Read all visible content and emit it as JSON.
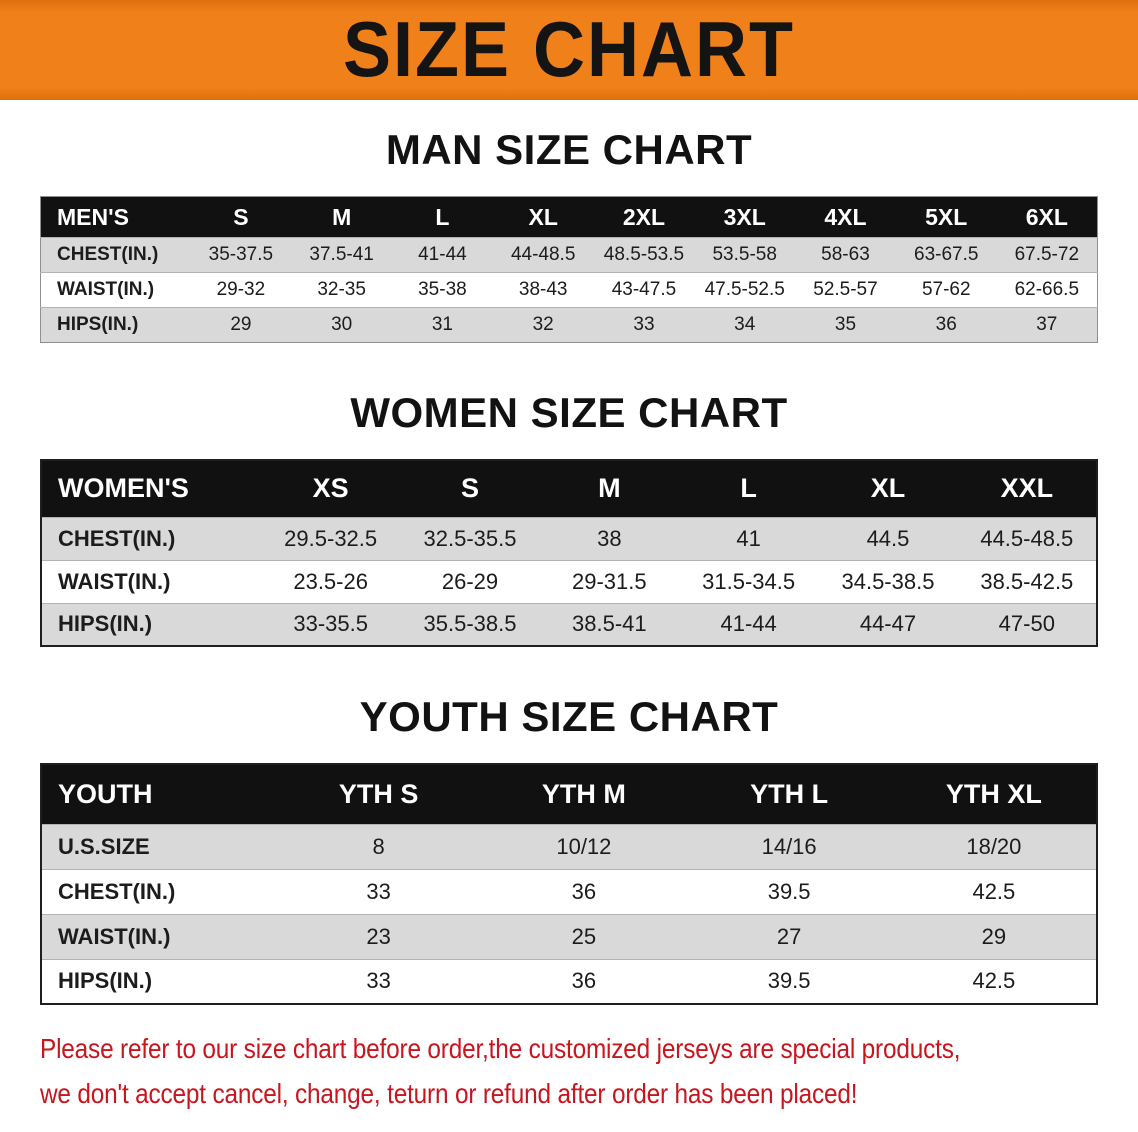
{
  "banner": {
    "title": "SIZE CHART"
  },
  "chart_data": [
    {
      "type": "table",
      "id": "mens",
      "title": "MAN SIZE CHART",
      "header": [
        "MEN'S",
        "S",
        "M",
        "L",
        "XL",
        "2XL",
        "3XL",
        "4XL",
        "5XL",
        "6XL"
      ],
      "rows": [
        [
          "CHEST(IN.)",
          "35-37.5",
          "37.5-41",
          "41-44",
          "44-48.5",
          "48.5-53.5",
          "53.5-58",
          "58-63",
          "63-67.5",
          "67.5-72"
        ],
        [
          "WAIST(IN.)",
          "29-32",
          "32-35",
          "35-38",
          "38-43",
          "43-47.5",
          "47.5-52.5",
          "52.5-57",
          "57-62",
          "62-66.5"
        ],
        [
          "HIPS(IN.)",
          "29",
          "30",
          "31",
          "32",
          "33",
          "34",
          "35",
          "36",
          "37"
        ]
      ]
    },
    {
      "type": "table",
      "id": "womens",
      "title": "WOMEN SIZE CHART",
      "header": [
        "WOMEN'S",
        "XS",
        "S",
        "M",
        "L",
        "XL",
        "XXL"
      ],
      "rows": [
        [
          "CHEST(IN.)",
          "29.5-32.5",
          "32.5-35.5",
          "38",
          "41",
          "44.5",
          "44.5-48.5"
        ],
        [
          "WAIST(IN.)",
          "23.5-26",
          "26-29",
          "29-31.5",
          "31.5-34.5",
          "34.5-38.5",
          "38.5-42.5"
        ],
        [
          "HIPS(IN.)",
          "33-35.5",
          "35.5-38.5",
          "38.5-41",
          "41-44",
          "44-47",
          "47-50"
        ]
      ]
    },
    {
      "type": "table",
      "id": "youth",
      "title": "YOUTH SIZE CHART",
      "header": [
        "YOUTH",
        "YTH S",
        "YTH M",
        "YTH L",
        "YTH XL"
      ],
      "rows": [
        [
          "U.S.SIZE",
          "8",
          "10/12",
          "14/16",
          "18/20"
        ],
        [
          "CHEST(IN.)",
          "33",
          "36",
          "39.5",
          "42.5"
        ],
        [
          "WAIST(IN.)",
          "23",
          "25",
          "27",
          "29"
        ],
        [
          "HIPS(IN.)",
          "33",
          "36",
          "39.5",
          "42.5"
        ]
      ]
    }
  ],
  "disclaimer": {
    "line1": "Please refer to our size chart before order,the customized jerseys are special products,",
    "line2": "we don't accept cancel, change, teturn or refund after order has been placed!"
  },
  "colors": {
    "banner_orange": "#f08019",
    "banner_orange_dark": "#dd6f0c",
    "header_black": "#111111",
    "row_gray": "#d9d9d9",
    "disclaimer_red": "#c9151e"
  }
}
